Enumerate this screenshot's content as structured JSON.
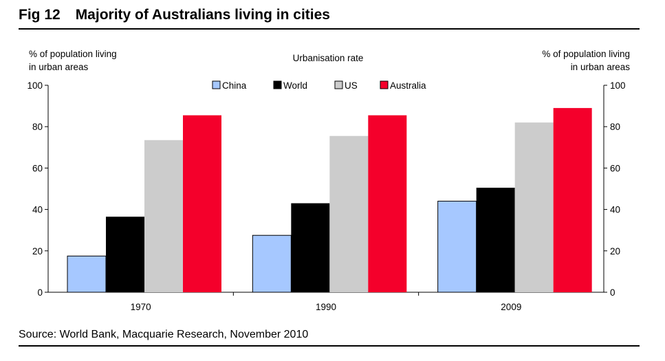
{
  "figure": {
    "number": "Fig 12",
    "title": "Majority of Australians living in cities",
    "source": "Source: World Bank, Macquarie Research, November 2010"
  },
  "chart_data": {
    "type": "bar",
    "title": "Urbanisation rate",
    "ylabel_left": [
      "% of population living",
      "in urban areas"
    ],
    "ylabel_right": [
      "% of population living",
      "in urban areas"
    ],
    "ylim": [
      0,
      100
    ],
    "yticks": [
      0,
      20,
      40,
      60,
      80,
      100
    ],
    "categories": [
      "1970",
      "1990",
      "2009"
    ],
    "legend_position": "top-center",
    "grid": false,
    "series": [
      {
        "name": "China",
        "color": "#A6C8FF",
        "values": [
          17.5,
          27.5,
          44
        ]
      },
      {
        "name": "World",
        "color": "#000000",
        "values": [
          36.5,
          43,
          50.5
        ]
      },
      {
        "name": "US",
        "color": "#CCCCCC",
        "values": [
          73.5,
          75.5,
          82
        ]
      },
      {
        "name": "Australia",
        "color": "#F4002B",
        "values": [
          85.5,
          85.5,
          89
        ]
      }
    ]
  }
}
